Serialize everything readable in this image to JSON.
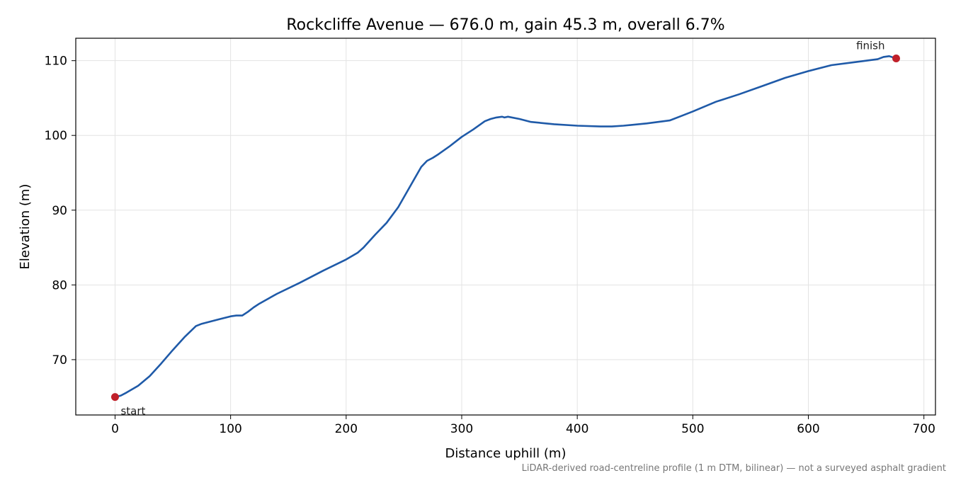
{
  "chart_data": {
    "type": "line",
    "title": "Rockcliffe Avenue — 676.0 m, gain 45.3 m, overall 6.7%",
    "xlabel": "Distance uphill (m)",
    "ylabel": "Elevation (m)",
    "xlim": [
      -34,
      710
    ],
    "ylim": [
      62.6,
      113
    ],
    "xticks": [
      0,
      100,
      200,
      300,
      400,
      500,
      600,
      700
    ],
    "yticks": [
      70,
      80,
      90,
      100,
      110
    ],
    "grid": true,
    "footnote": "LiDAR-derived road-centreline profile (1 m DTM, bilinear) — not a surveyed asphalt gradient",
    "colors": {
      "line": "#1f5aa8",
      "marker": "#c0202a",
      "grid": "#e3e3e3",
      "footnote": "#777777"
    },
    "series": [
      {
        "x": [
          0,
          5,
          10,
          20,
          30,
          40,
          50,
          60,
          70,
          75,
          80,
          90,
          100,
          105,
          110,
          115,
          120,
          125,
          140,
          160,
          180,
          200,
          210,
          215,
          225,
          235,
          245,
          255,
          265,
          270,
          275,
          280,
          290,
          300,
          310,
          320,
          325,
          330,
          335,
          337,
          340,
          350,
          360,
          380,
          400,
          420,
          430,
          440,
          460,
          480,
          490,
          500,
          520,
          540,
          560,
          580,
          600,
          620,
          640,
          660,
          665,
          670,
          676
        ],
        "y": [
          65.0,
          65.2,
          65.6,
          66.5,
          67.8,
          69.5,
          71.3,
          73.0,
          74.5,
          74.8,
          75.0,
          75.4,
          75.8,
          75.9,
          75.9,
          76.4,
          77.0,
          77.5,
          78.8,
          80.3,
          81.9,
          83.4,
          84.3,
          85.0,
          86.7,
          88.3,
          90.4,
          93.1,
          95.8,
          96.6,
          97.0,
          97.5,
          98.6,
          99.8,
          100.8,
          101.9,
          102.2,
          102.4,
          102.5,
          102.4,
          102.5,
          102.2,
          101.8,
          101.5,
          101.3,
          101.2,
          101.2,
          101.3,
          101.6,
          102.0,
          102.6,
          103.2,
          104.5,
          105.5,
          106.6,
          107.7,
          108.6,
          109.4,
          109.8,
          110.2,
          110.5,
          110.6,
          110.3
        ]
      }
    ],
    "markers": [
      {
        "label": "start",
        "x": 0,
        "y": 65.0
      },
      {
        "label": "finish",
        "x": 676,
        "y": 110.3
      }
    ]
  }
}
